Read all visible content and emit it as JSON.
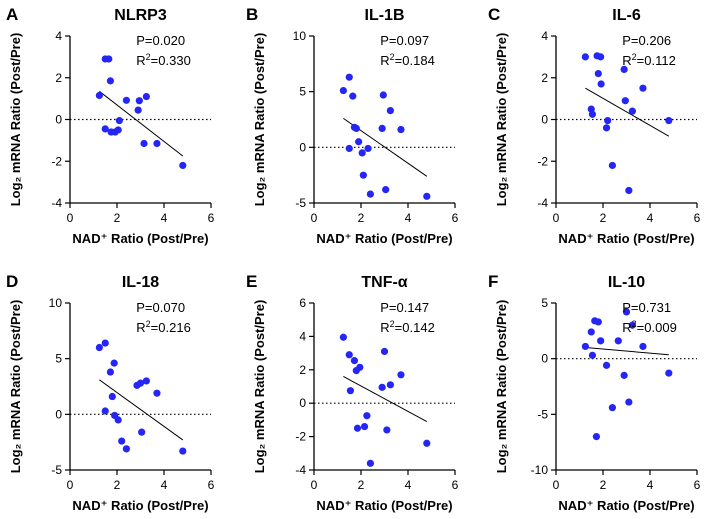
{
  "colors": {
    "point": "#2525f5",
    "axis": "#000000",
    "fit": "#000000"
  },
  "chart_data": [
    {
      "type": "scatter",
      "panel": "A",
      "title": "NLRP3",
      "xlabel": "NAD⁺ Ratio (Post/Pre)",
      "ylabel": "Log₂ mRNA Ratio (Post/Pre)",
      "xlim": [
        0,
        6
      ],
      "ylim": [
        -4,
        4
      ],
      "xticks": [
        0,
        2,
        4,
        6
      ],
      "yticks": [
        -4,
        -2,
        0,
        2,
        4
      ],
      "p_value": "P=0.020",
      "r2_text": "=0.330",
      "reference_line": 0,
      "fit": {
        "x": [
          1.25,
          4.8
        ],
        "y": [
          1.35,
          -1.75
        ]
      },
      "points": [
        [
          1.25,
          1.15
        ],
        [
          1.5,
          2.9
        ],
        [
          1.65,
          2.9
        ],
        [
          1.72,
          1.85
        ],
        [
          1.5,
          -0.45
        ],
        [
          1.75,
          -0.6
        ],
        [
          1.92,
          -0.6
        ],
        [
          2.05,
          -0.5
        ],
        [
          2.1,
          -0.05
        ],
        [
          2.4,
          0.92
        ],
        [
          2.9,
          0.45
        ],
        [
          2.95,
          0.9
        ],
        [
          3.15,
          -1.15
        ],
        [
          3.25,
          1.1
        ],
        [
          3.7,
          -1.15
        ],
        [
          4.8,
          -2.2
        ]
      ]
    },
    {
      "type": "scatter",
      "panel": "B",
      "title": "IL-1B",
      "xlabel": "NAD⁺ Ratio (Post/Pre)",
      "ylabel": "Log₂ mRNA Ratio (Post/Pre)",
      "xlim": [
        0,
        6
      ],
      "ylim": [
        -5,
        10
      ],
      "xticks": [
        0,
        2,
        4,
        6
      ],
      "yticks": [
        -5,
        0,
        5,
        10
      ],
      "p_value": "P=0.097",
      "r2_text": "=0.184",
      "reference_line": 0,
      "fit": {
        "x": [
          1.25,
          4.8
        ],
        "y": [
          2.6,
          -2.6
        ]
      },
      "points": [
        [
          1.25,
          5.1
        ],
        [
          1.5,
          6.3
        ],
        [
          1.65,
          4.6
        ],
        [
          1.72,
          1.8
        ],
        [
          1.5,
          -0.1
        ],
        [
          1.8,
          1.7
        ],
        [
          1.9,
          0.5
        ],
        [
          2.05,
          -0.5
        ],
        [
          2.1,
          -2.5
        ],
        [
          2.3,
          -0.1
        ],
        [
          2.4,
          -4.2
        ],
        [
          2.9,
          1.7
        ],
        [
          2.95,
          4.7
        ],
        [
          3.05,
          -3.8
        ],
        [
          3.25,
          3.3
        ],
        [
          3.7,
          1.6
        ],
        [
          4.8,
          -4.4
        ]
      ]
    },
    {
      "type": "scatter",
      "panel": "C",
      "title": "IL-6",
      "xlabel": "NAD⁺ Ratio (Post/Pre)",
      "ylabel": "Log₂ mRNA Ratio (Post/Pre)",
      "xlim": [
        0,
        6
      ],
      "ylim": [
        -4,
        4
      ],
      "xticks": [
        0,
        2,
        4,
        6
      ],
      "yticks": [
        -4,
        -2,
        0,
        2,
        4
      ],
      "p_value": "P=0.206",
      "r2_text": "=0.112",
      "reference_line": 0,
      "fit": {
        "x": [
          1.25,
          4.8
        ],
        "y": [
          1.5,
          -0.8
        ]
      },
      "points": [
        [
          1.25,
          3.0
        ],
        [
          1.5,
          0.5
        ],
        [
          1.55,
          0.25
        ],
        [
          1.75,
          3.05
        ],
        [
          1.8,
          2.2
        ],
        [
          1.9,
          3.0
        ],
        [
          1.92,
          1.7
        ],
        [
          2.15,
          -0.4
        ],
        [
          2.2,
          -0.05
        ],
        [
          2.4,
          -2.2
        ],
        [
          2.9,
          2.4
        ],
        [
          2.95,
          0.9
        ],
        [
          3.1,
          -3.4
        ],
        [
          3.25,
          0.4
        ],
        [
          3.7,
          1.5
        ],
        [
          4.8,
          -0.05
        ]
      ]
    },
    {
      "type": "scatter",
      "panel": "D",
      "title": "IL-18",
      "xlabel": "NAD⁺ Ratio (Post/Pre)",
      "ylabel": "Log₂ mRNA Ratio (Post/Pre)",
      "xlim": [
        0,
        6
      ],
      "ylim": [
        -5,
        10
      ],
      "xticks": [
        0,
        2,
        4,
        6
      ],
      "yticks": [
        -5,
        0,
        5,
        10
      ],
      "p_value": "P=0.070",
      "r2_text": "=0.216",
      "reference_line": 0,
      "fit": {
        "x": [
          1.25,
          4.8
        ],
        "y": [
          3.1,
          -2.3
        ]
      },
      "points": [
        [
          1.25,
          6.0
        ],
        [
          1.5,
          6.4
        ],
        [
          1.72,
          3.8
        ],
        [
          1.88,
          4.6
        ],
        [
          1.5,
          0.3
        ],
        [
          1.8,
          1.6
        ],
        [
          1.9,
          -0.1
        ],
        [
          2.05,
          -0.5
        ],
        [
          2.2,
          -2.4
        ],
        [
          2.4,
          -3.1
        ],
        [
          2.85,
          2.6
        ],
        [
          3.0,
          2.8
        ],
        [
          3.05,
          -1.6
        ],
        [
          3.25,
          3.0
        ],
        [
          3.7,
          1.9
        ],
        [
          4.8,
          -3.3
        ]
      ]
    },
    {
      "type": "scatter",
      "panel": "E",
      "title": "TNF-α",
      "xlabel": "NAD⁺ Ratio (Post/Pre)",
      "ylabel": "Log₂ mRNA Ratio (Post/Pre)",
      "xlim": [
        0,
        6
      ],
      "ylim": [
        -4,
        6
      ],
      "xticks": [
        0,
        2,
        4,
        6
      ],
      "yticks": [
        -4,
        -2,
        0,
        2,
        4,
        6
      ],
      "p_value": "P=0.147",
      "r2_text": "=0.142",
      "reference_line": 0,
      "fit": {
        "x": [
          1.25,
          4.8
        ],
        "y": [
          1.6,
          -1.1
        ]
      },
      "points": [
        [
          1.25,
          3.95
        ],
        [
          1.5,
          2.9
        ],
        [
          1.55,
          0.75
        ],
        [
          1.72,
          2.55
        ],
        [
          1.8,
          1.95
        ],
        [
          1.95,
          2.15
        ],
        [
          1.85,
          -1.5
        ],
        [
          2.15,
          -1.4
        ],
        [
          2.25,
          -0.75
        ],
        [
          2.4,
          -3.6
        ],
        [
          2.9,
          0.95
        ],
        [
          3.0,
          3.1
        ],
        [
          3.1,
          -1.6
        ],
        [
          3.25,
          1.1
        ],
        [
          3.7,
          1.7
        ],
        [
          4.8,
          -2.4
        ]
      ]
    },
    {
      "type": "scatter",
      "panel": "F",
      "title": "IL-10",
      "xlabel": "NAD⁺ Ratio (Post/Pre)",
      "ylabel": "Log₂ mRNA Ratio (Post/Pre)",
      "xlim": [
        0,
        6
      ],
      "ylim": [
        -10,
        5
      ],
      "xticks": [
        0,
        2,
        4,
        6
      ],
      "yticks": [
        -10,
        -5,
        0,
        5
      ],
      "p_value": "P=0.731",
      "r2_text": "=0.009",
      "reference_line": 0,
      "fit": {
        "x": [
          1.25,
          4.8
        ],
        "y": [
          1.0,
          0.35
        ]
      },
      "points": [
        [
          1.25,
          1.1
        ],
        [
          1.5,
          2.4
        ],
        [
          1.55,
          0.3
        ],
        [
          1.65,
          3.4
        ],
        [
          1.8,
          3.3
        ],
        [
          1.9,
          1.6
        ],
        [
          1.72,
          -7.0
        ],
        [
          2.15,
          -0.6
        ],
        [
          2.4,
          -4.4
        ],
        [
          2.65,
          1.6
        ],
        [
          2.9,
          -1.5
        ],
        [
          3.0,
          4.2
        ],
        [
          3.1,
          -3.9
        ],
        [
          3.25,
          3.0
        ],
        [
          3.7,
          1.1
        ],
        [
          4.8,
          -1.3
        ]
      ]
    }
  ]
}
